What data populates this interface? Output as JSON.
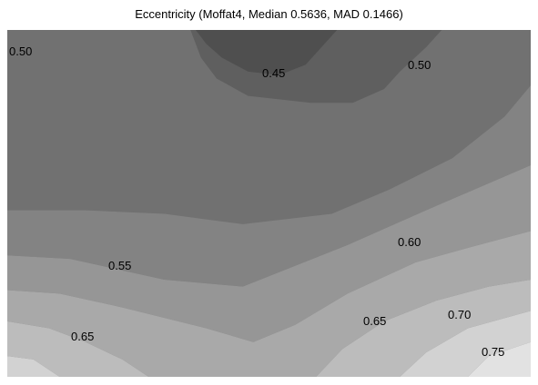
{
  "chart_data": {
    "type": "heatmap",
    "subtype": "filled-contour",
    "title": "Eccentricity (Moffat4, Median 0.5636, MAD 0.1466)",
    "xlabel": "",
    "ylabel": "",
    "axes_visible": false,
    "grid": false,
    "legend": "none",
    "levels": [
      0.4,
      0.45,
      0.5,
      0.55,
      0.6,
      0.65,
      0.7,
      0.75
    ],
    "level_colors": [
      "#4f4f4f",
      "#5f5f5f",
      "#717171",
      "#838383",
      "#969696",
      "#a9a9a9",
      "#bcbcbc",
      "#d2d2d2",
      "#e2e2e2"
    ],
    "contour_labels": [
      "0.50",
      "0.45",
      "0.50",
      "0.60",
      "0.55",
      "0.65",
      "0.70",
      "0.65",
      "0.75"
    ]
  }
}
